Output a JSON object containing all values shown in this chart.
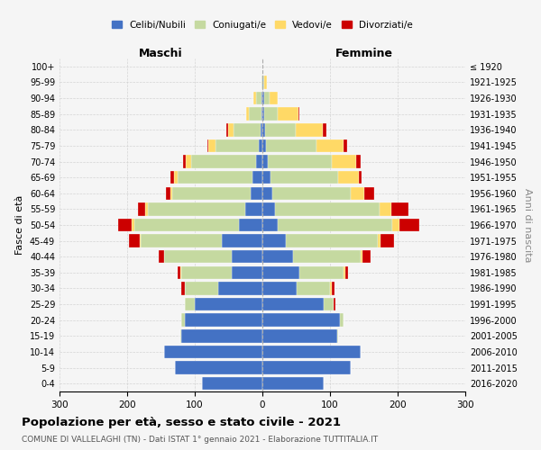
{
  "age_groups": [
    "0-4",
    "5-9",
    "10-14",
    "15-19",
    "20-24",
    "25-29",
    "30-34",
    "35-39",
    "40-44",
    "45-49",
    "50-54",
    "55-59",
    "60-64",
    "65-69",
    "70-74",
    "75-79",
    "80-84",
    "85-89",
    "90-94",
    "95-99",
    "100+"
  ],
  "birth_years": [
    "2016-2020",
    "2011-2015",
    "2006-2010",
    "2001-2005",
    "1996-2000",
    "1991-1995",
    "1986-1990",
    "1981-1985",
    "1976-1980",
    "1971-1975",
    "1966-1970",
    "1961-1965",
    "1956-1960",
    "1951-1955",
    "1946-1950",
    "1941-1945",
    "1936-1940",
    "1931-1935",
    "1926-1930",
    "1921-1925",
    "≤ 1920"
  ],
  "male": {
    "celibi": [
      90,
      130,
      145,
      120,
      115,
      100,
      65,
      45,
      45,
      60,
      35,
      25,
      18,
      15,
      10,
      5,
      3,
      2,
      2,
      0,
      0
    ],
    "coniugati": [
      0,
      0,
      0,
      2,
      5,
      15,
      50,
      75,
      100,
      120,
      155,
      145,
      115,
      110,
      95,
      65,
      40,
      18,
      8,
      2,
      0
    ],
    "vedovi": [
      0,
      0,
      0,
      0,
      0,
      0,
      0,
      1,
      1,
      2,
      3,
      4,
      3,
      6,
      8,
      10,
      8,
      4,
      3,
      0,
      0
    ],
    "divorziati": [
      0,
      0,
      0,
      0,
      0,
      0,
      5,
      5,
      8,
      15,
      20,
      10,
      7,
      5,
      5,
      2,
      2,
      0,
      0,
      0,
      0
    ]
  },
  "female": {
    "nubili": [
      90,
      130,
      145,
      110,
      115,
      90,
      50,
      55,
      45,
      35,
      22,
      18,
      15,
      12,
      8,
      5,
      4,
      3,
      2,
      1,
      0
    ],
    "coniugate": [
      0,
      0,
      0,
      2,
      5,
      15,
      50,
      65,
      100,
      135,
      170,
      155,
      115,
      100,
      95,
      75,
      45,
      20,
      8,
      2,
      0
    ],
    "vedove": [
      0,
      0,
      0,
      0,
      0,
      0,
      2,
      2,
      3,
      5,
      10,
      18,
      20,
      30,
      35,
      40,
      40,
      30,
      12,
      3,
      0
    ],
    "divorziate": [
      0,
      0,
      0,
      0,
      0,
      3,
      5,
      5,
      12,
      20,
      30,
      25,
      15,
      5,
      7,
      5,
      5,
      2,
      1,
      0,
      0
    ]
  },
  "colors": {
    "celibi": "#4472C4",
    "coniugati": "#c5d9a0",
    "vedovi": "#ffd966",
    "divorziati": "#cc0000"
  },
  "title": "Popolazione per età, sesso e stato civile - 2021",
  "subtitle": "COMUNE DI VALLELAGHI (TN) - Dati ISTAT 1° gennaio 2021 - Elaborazione TUTTITALIA.IT",
  "xlabel_left": "Maschi",
  "xlabel_right": "Femmine",
  "ylabel_left": "Fasce di età",
  "ylabel_right": "Anni di nascita",
  "xmin": -300,
  "xmax": 300,
  "legend_labels": [
    "Celibi/Nubili",
    "Coniugati/e",
    "Vedovi/e",
    "Divorziati/e"
  ],
  "background_color": "#f5f5f5"
}
